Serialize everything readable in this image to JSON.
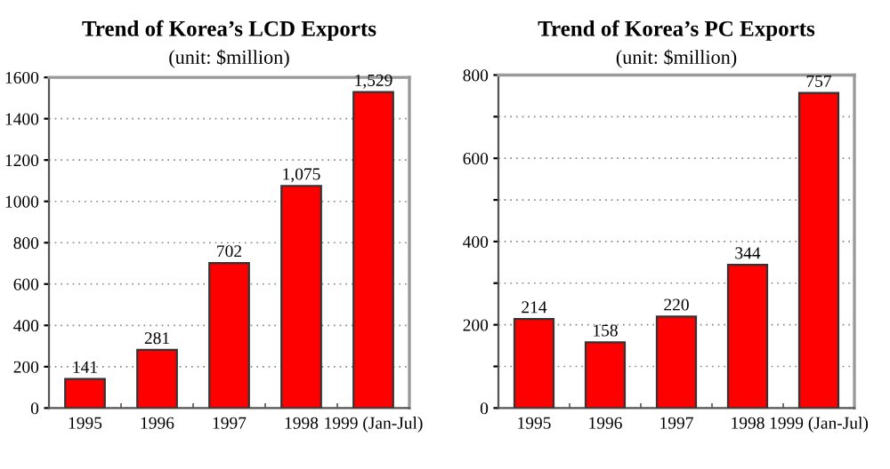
{
  "chart_data": [
    {
      "type": "bar",
      "title": "Trend of Korea’s LCD Exports",
      "subtitle": "(unit: $million)",
      "categories": [
        "1995",
        "1996",
        "1997",
        "1998",
        "1999 (Jan-Jul)"
      ],
      "values": [
        141,
        281,
        702,
        1075,
        1529
      ],
      "value_labels": [
        "141",
        "281",
        "702",
        "1,075",
        "1,529"
      ],
      "color": "#ff0000",
      "ylim": [
        0,
        1600
      ],
      "yticks": [
        0,
        200,
        400,
        600,
        800,
        1000,
        1200,
        1400,
        1600
      ],
      "grid": "y"
    },
    {
      "type": "bar",
      "title": "Trend of Korea’s PC Exports",
      "subtitle": "(unit: $million)",
      "categories": [
        "1995",
        "1996",
        "1997",
        "1998",
        "1999 (Jan-Jul)"
      ],
      "values": [
        214,
        158,
        220,
        344,
        757
      ],
      "value_labels": [
        "214",
        "158",
        "220",
        "344",
        "757"
      ],
      "color": "#ff0000",
      "ylim": [
        0,
        800
      ],
      "yticks": [
        0,
        {
          "value": 100,
          "label": null
        },
        200,
        {
          "value": 300,
          "label": null
        },
        400,
        {
          "value": 500,
          "label": null
        },
        600,
        {
          "value": 700,
          "label": null
        },
        800
      ],
      "grid": "y"
    }
  ]
}
